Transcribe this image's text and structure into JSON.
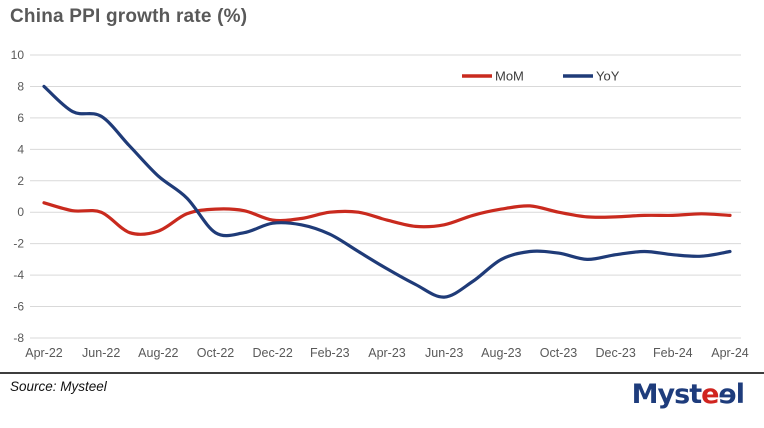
{
  "title": "China PPI growth rate (%)",
  "source_note": "Source: Mysteel",
  "logo": {
    "part1": "Myst",
    "e_red": "e",
    "e_blue": "ɘ",
    "part2": "l"
  },
  "colors": {
    "mom_line": "#c92a1e",
    "yoy_line": "#1f3b78",
    "title_text": "#595959",
    "axis_text": "#595959",
    "legend_text": "#3d3d3d",
    "gridline": "#d9d9d9",
    "divider": "#3d3d3d",
    "logo_blue": "#1e3c7c",
    "logo_red": "#d0241f"
  },
  "chart_data": {
    "type": "line",
    "smooth": true,
    "grid": true,
    "legend_position": "top-right-inside",
    "x": [
      "Apr-22",
      "May-22",
      "Jun-22",
      "Jul-22",
      "Aug-22",
      "Sep-22",
      "Oct-22",
      "Nov-22",
      "Dec-22",
      "Jan-23",
      "Feb-23",
      "Mar-23",
      "Apr-23",
      "May-23",
      "Jun-23",
      "Jul-23",
      "Aug-23",
      "Sep-23",
      "Oct-23",
      "Nov-23",
      "Dec-23",
      "Jan-24",
      "Feb-24",
      "Mar-24",
      "Apr-24"
    ],
    "x_label_interval": 2,
    "series": [
      {
        "name": "MoM",
        "color": "#c92a1e",
        "values": [
          0.6,
          0.1,
          0.0,
          -1.3,
          -1.2,
          -0.1,
          0.2,
          0.1,
          -0.5,
          -0.4,
          0.0,
          0.0,
          -0.5,
          -0.9,
          -0.8,
          -0.2,
          0.2,
          0.4,
          0.0,
          -0.3,
          -0.3,
          -0.2,
          -0.2,
          -0.1,
          -0.2
        ]
      },
      {
        "name": "YoY",
        "color": "#1f3b78",
        "values": [
          8.0,
          6.4,
          6.1,
          4.2,
          2.3,
          0.9,
          -1.3,
          -1.3,
          -0.7,
          -0.8,
          -1.4,
          -2.5,
          -3.6,
          -4.6,
          -5.4,
          -4.4,
          -3.0,
          -2.5,
          -2.6,
          -3.0,
          -2.7,
          -2.5,
          -2.7,
          -2.8,
          -2.5
        ]
      }
    ],
    "ylim": [
      -8,
      10
    ],
    "ytick_step": 2,
    "title": "China PPI growth rate (%)",
    "xlabel": "",
    "ylabel": ""
  }
}
